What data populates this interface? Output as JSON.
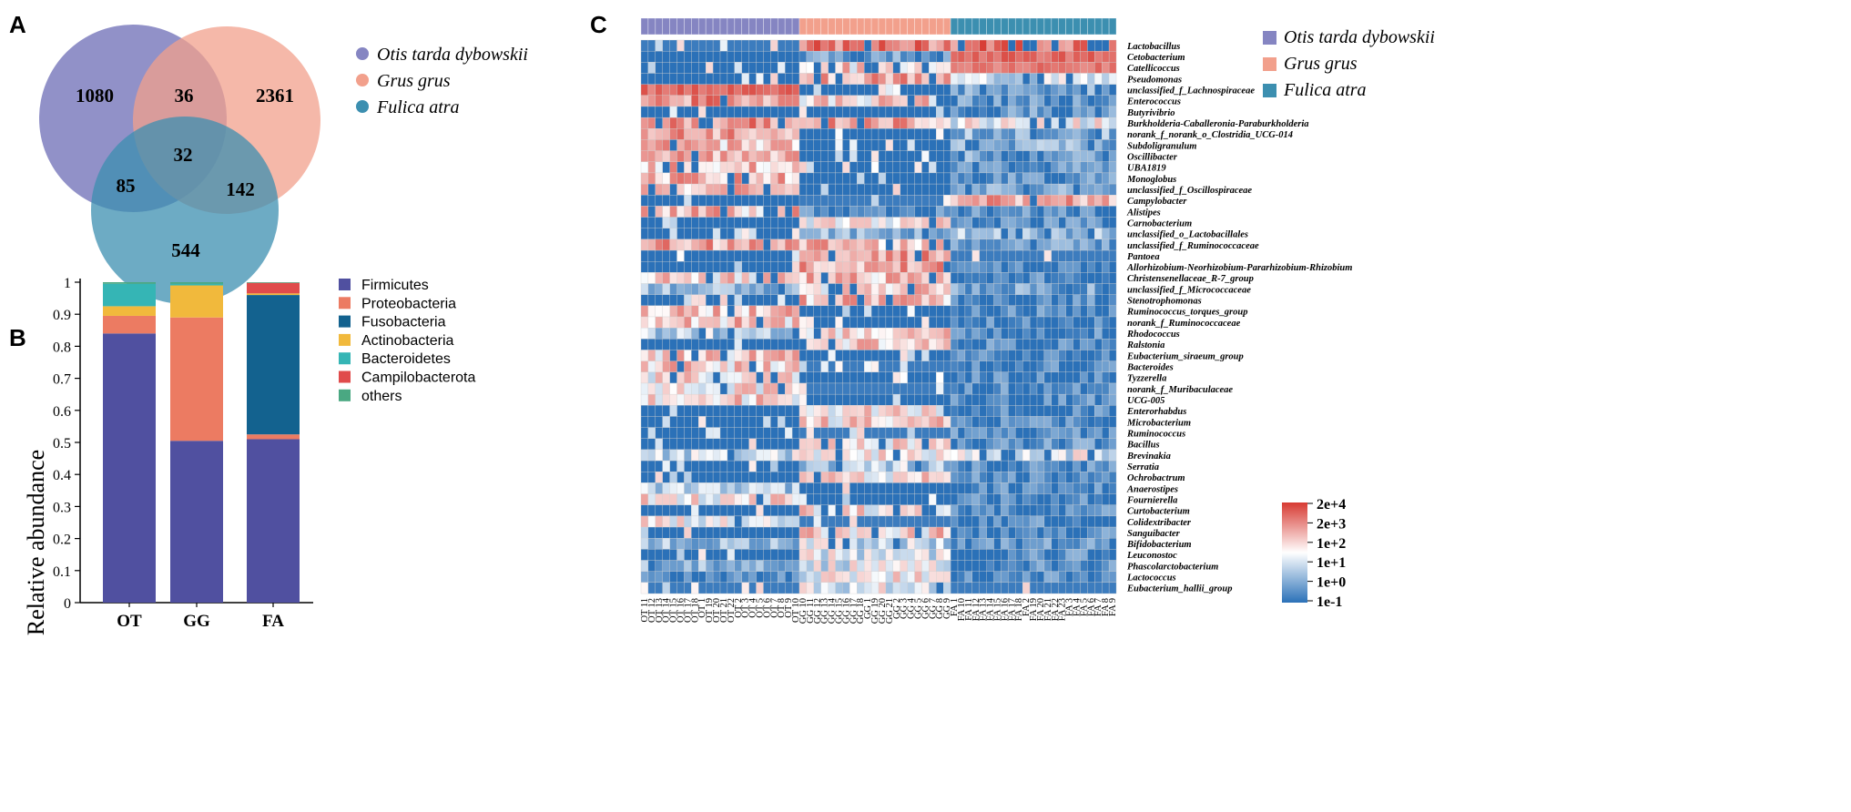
{
  "panel_labels": {
    "a": "A",
    "b": "B",
    "c": "C"
  },
  "colors": {
    "ot": "#8585c2",
    "gg": "#f2a08c",
    "fa": "#3c8fb0",
    "firmicutes": "#5050a0",
    "proteobacteria": "#ec7b62",
    "fusobacteria": "#13628f",
    "actinobacteria": "#f1b93c",
    "bacteroidetes": "#35b5b5",
    "campilobacterota": "#e04b4b",
    "others": "#4aa882",
    "heat_low": "#2b71b8",
    "heat_mid": "#ffffff",
    "heat_high": "#d73a32"
  },
  "chart_data": [
    {
      "type": "venn",
      "sets": [
        "Otis tarda dybowskii",
        "Grus grus",
        "Fulica atra"
      ],
      "regions": {
        "ot_only": "1080",
        "gg_only": "2361",
        "fa_only": "544",
        "ot_gg": "36",
        "ot_fa": "85",
        "gg_fa": "142",
        "all": "32"
      },
      "legend": [
        "Otis tarda dybowskii",
        "Grus grus",
        "Fulica atra"
      ]
    },
    {
      "type": "bar",
      "stacked": true,
      "categories": [
        "OT",
        "GG",
        "FA"
      ],
      "ylabel": "Relative abundance",
      "ylim": [
        0,
        1
      ],
      "yticks": [
        "0",
        "0.1",
        "0.2",
        "0.3",
        "0.4",
        "0.5",
        "0.6",
        "0.7",
        "0.8",
        "0.9",
        "1"
      ],
      "series": [
        {
          "name": "Firmicutes",
          "key": "firmicutes",
          "values": [
            0.84,
            0.505,
            0.51
          ]
        },
        {
          "name": "Proteobacteria",
          "key": "proteobacteria",
          "values": [
            0.055,
            0.385,
            0.015
          ]
        },
        {
          "name": "Fusobacteria",
          "key": "fusobacteria",
          "values": [
            0.0,
            0.0,
            0.435
          ]
        },
        {
          "name": "Actinobacteria",
          "key": "actinobacteria",
          "values": [
            0.03,
            0.1,
            0.005
          ]
        },
        {
          "name": "Bacteroidetes",
          "key": "bacteroidetes",
          "values": [
            0.07,
            0.005,
            0.0
          ]
        },
        {
          "name": "Campilobacterota",
          "key": "campilobacterota",
          "values": [
            0.0,
            0.0,
            0.033
          ]
        },
        {
          "name": "others",
          "key": "others",
          "values": [
            0.005,
            0.005,
            0.002
          ]
        }
      ]
    },
    {
      "type": "heatmap",
      "groups": [
        {
          "name": "Otis tarda dybowskii",
          "key": "ot",
          "count": 22
        },
        {
          "name": "Grus grus",
          "key": "gg",
          "count": 21
        },
        {
          "name": "Fulica atra",
          "key": "fa",
          "count": 23
        }
      ],
      "columns": [
        "OT 11",
        "OT 12",
        "OT 13",
        "OT 14",
        "OT 15",
        "OT 16",
        "OT 17",
        "OT 18",
        "OT 1",
        "OT 19",
        "OT 20",
        "OT 21",
        "OT 22",
        "OT 2",
        "OT 3",
        "OT 4",
        "OT 5",
        "OT 6",
        "OT 7",
        "OT 8",
        "OT 9",
        "OT 10",
        "GG 10",
        "GG 11",
        "GG 12",
        "GG 13",
        "GG 14",
        "GG 15",
        "GG 16",
        "GG 17",
        "GG 18",
        "GG 1",
        "GG 19",
        "GG 20",
        "GG 21",
        "GG 2",
        "GG 3",
        "GG 4",
        "GG 5",
        "GG 6",
        "GG 7",
        "GG 8",
        "GG 9",
        "FA 1",
        "FA 10",
        "FA 11",
        "FA 12",
        "FA 13",
        "FA 14",
        "FA 15",
        "FA 16",
        "FA 17",
        "FA 18",
        "FA 2",
        "FA 19",
        "FA 20",
        "FA 21",
        "FA 22",
        "FA 23",
        "FA 3",
        "FA 4",
        "FA 5",
        "FA 6",
        "FA 7",
        "FA 8",
        "FA 9"
      ],
      "rows": [
        "Lactobacillus",
        "Cetobacterium",
        "Catellicoccus",
        "Pseudomonas",
        "unclassified_f_Lachnospiraceae",
        "Enterococcus",
        "Butyrivibrio",
        "Burkholderia-Caballeronia-Paraburkholderia",
        "norank_f_norank_o_Clostridia_UCG-014",
        "Subdoligranulum",
        "Oscillibacter",
        "UBA1819",
        "Monoglobus",
        "unclassified_f_Oscillospiraceae",
        "Campylobacter",
        "Alistipes",
        "Carnobacterium",
        "unclassified_o_Lactobacillales",
        "unclassified_f_Ruminococcaceae",
        "Pantoea",
        "Allorhizobium-Neorhizobium-Pararhizobium-Rhizobium",
        "Christensenellaceae_R-7_group",
        "unclassified_f_Micrococcaceae",
        "Stenotrophomonas",
        "Ruminococcus_torques_group",
        "norank_f_Ruminococcaceae",
        "Rhodococcus",
        "Ralstonia",
        "Eubacterium_siraeum_group",
        "Bacteroides",
        "Tyzzerella",
        "norank_f_Muribaculaceae",
        "UCG-005",
        "Enterorhabdus",
        "Microbacterium",
        "Ruminococcus",
        "Bacillus",
        "Brevinakia",
        "Serratia",
        "Ochrobactrum",
        "Anaerostipes",
        "Fournierella",
        "Curtobacterium",
        "Colidextribacter",
        "Sanguibacter",
        "Bifidobacterium",
        "Leuconostoc",
        "Phascolarctobacterium",
        "Lactococcus",
        "Eubacterium_hallii_group"
      ],
      "row_profiles": [
        [
          -0.9,
          0.6,
          0.7
        ],
        [
          -1.0,
          -0.6,
          0.9
        ],
        [
          -1.0,
          0.2,
          0.8
        ],
        [
          -1.0,
          0.4,
          -0.2
        ],
        [
          0.9,
          -1.0,
          -0.6
        ],
        [
          0.5,
          0.2,
          -0.7
        ],
        [
          -1.0,
          -1.0,
          -0.7
        ],
        [
          0.5,
          0.4,
          0.0
        ],
        [
          0.4,
          -1.0,
          -0.5
        ],
        [
          0.3,
          -1.0,
          -0.5
        ],
        [
          0.3,
          -1.0,
          -0.6
        ],
        [
          0.3,
          -1.0,
          -0.7
        ],
        [
          0.35,
          -1.0,
          -0.7
        ],
        [
          0.3,
          -1.0,
          -0.6
        ],
        [
          -1.0,
          -0.9,
          0.4
        ],
        [
          0.3,
          -0.8,
          -0.7
        ],
        [
          -1.0,
          0.1,
          -0.8
        ],
        [
          -1.0,
          -0.5,
          -0.4
        ],
        [
          0.4,
          0.3,
          -0.6
        ],
        [
          -1.0,
          0.5,
          -0.9
        ],
        [
          -1.0,
          0.4,
          -0.8
        ],
        [
          0.2,
          0.3,
          -0.8
        ],
        [
          -0.5,
          0.2,
          -0.6
        ],
        [
          -1.0,
          0.3,
          -0.8
        ],
        [
          0.3,
          -1.0,
          -0.8
        ],
        [
          0.25,
          -1.0,
          -0.8
        ],
        [
          -0.3,
          0.2,
          -0.8
        ],
        [
          -1.0,
          0.2,
          -0.8
        ],
        [
          0.2,
          -1.0,
          -0.8
        ],
        [
          0.2,
          -0.9,
          -0.8
        ],
        [
          0.1,
          -1.0,
          -0.8
        ],
        [
          0.1,
          -0.9,
          -0.8
        ],
        [
          0.15,
          -1.0,
          -0.8
        ],
        [
          -1.0,
          0.1,
          -0.8
        ],
        [
          -1.0,
          0.15,
          -0.8
        ],
        [
          -1.0,
          -0.9,
          -0.8
        ],
        [
          -1.0,
          0.2,
          -0.7
        ],
        [
          -0.2,
          0.1,
          -0.1
        ],
        [
          -1.0,
          -0.3,
          -0.8
        ],
        [
          -1.0,
          0.1,
          -0.8
        ],
        [
          -0.3,
          -1.0,
          -0.8
        ],
        [
          0.1,
          -1.0,
          -0.8
        ],
        [
          -1.0,
          0.1,
          -0.8
        ],
        [
          0.0,
          -0.9,
          -0.8
        ],
        [
          -1.0,
          0.2,
          -0.8
        ],
        [
          -0.4,
          -0.2,
          -0.7
        ],
        [
          -1.0,
          -0.1,
          -0.8
        ],
        [
          -0.5,
          -0.1,
          -0.8
        ],
        [
          -0.8,
          0.0,
          -0.8
        ],
        [
          -0.9,
          -0.1,
          -0.9
        ]
      ],
      "legend": [
        "Otis tarda dybowskii",
        "Grus grus",
        "Fulica atra"
      ],
      "colorbar": {
        "labels": [
          "2e+4",
          "2e+3",
          "1e+2",
          "1e+1",
          "1e+0",
          "1e-1"
        ],
        "scale": "log"
      }
    }
  ]
}
